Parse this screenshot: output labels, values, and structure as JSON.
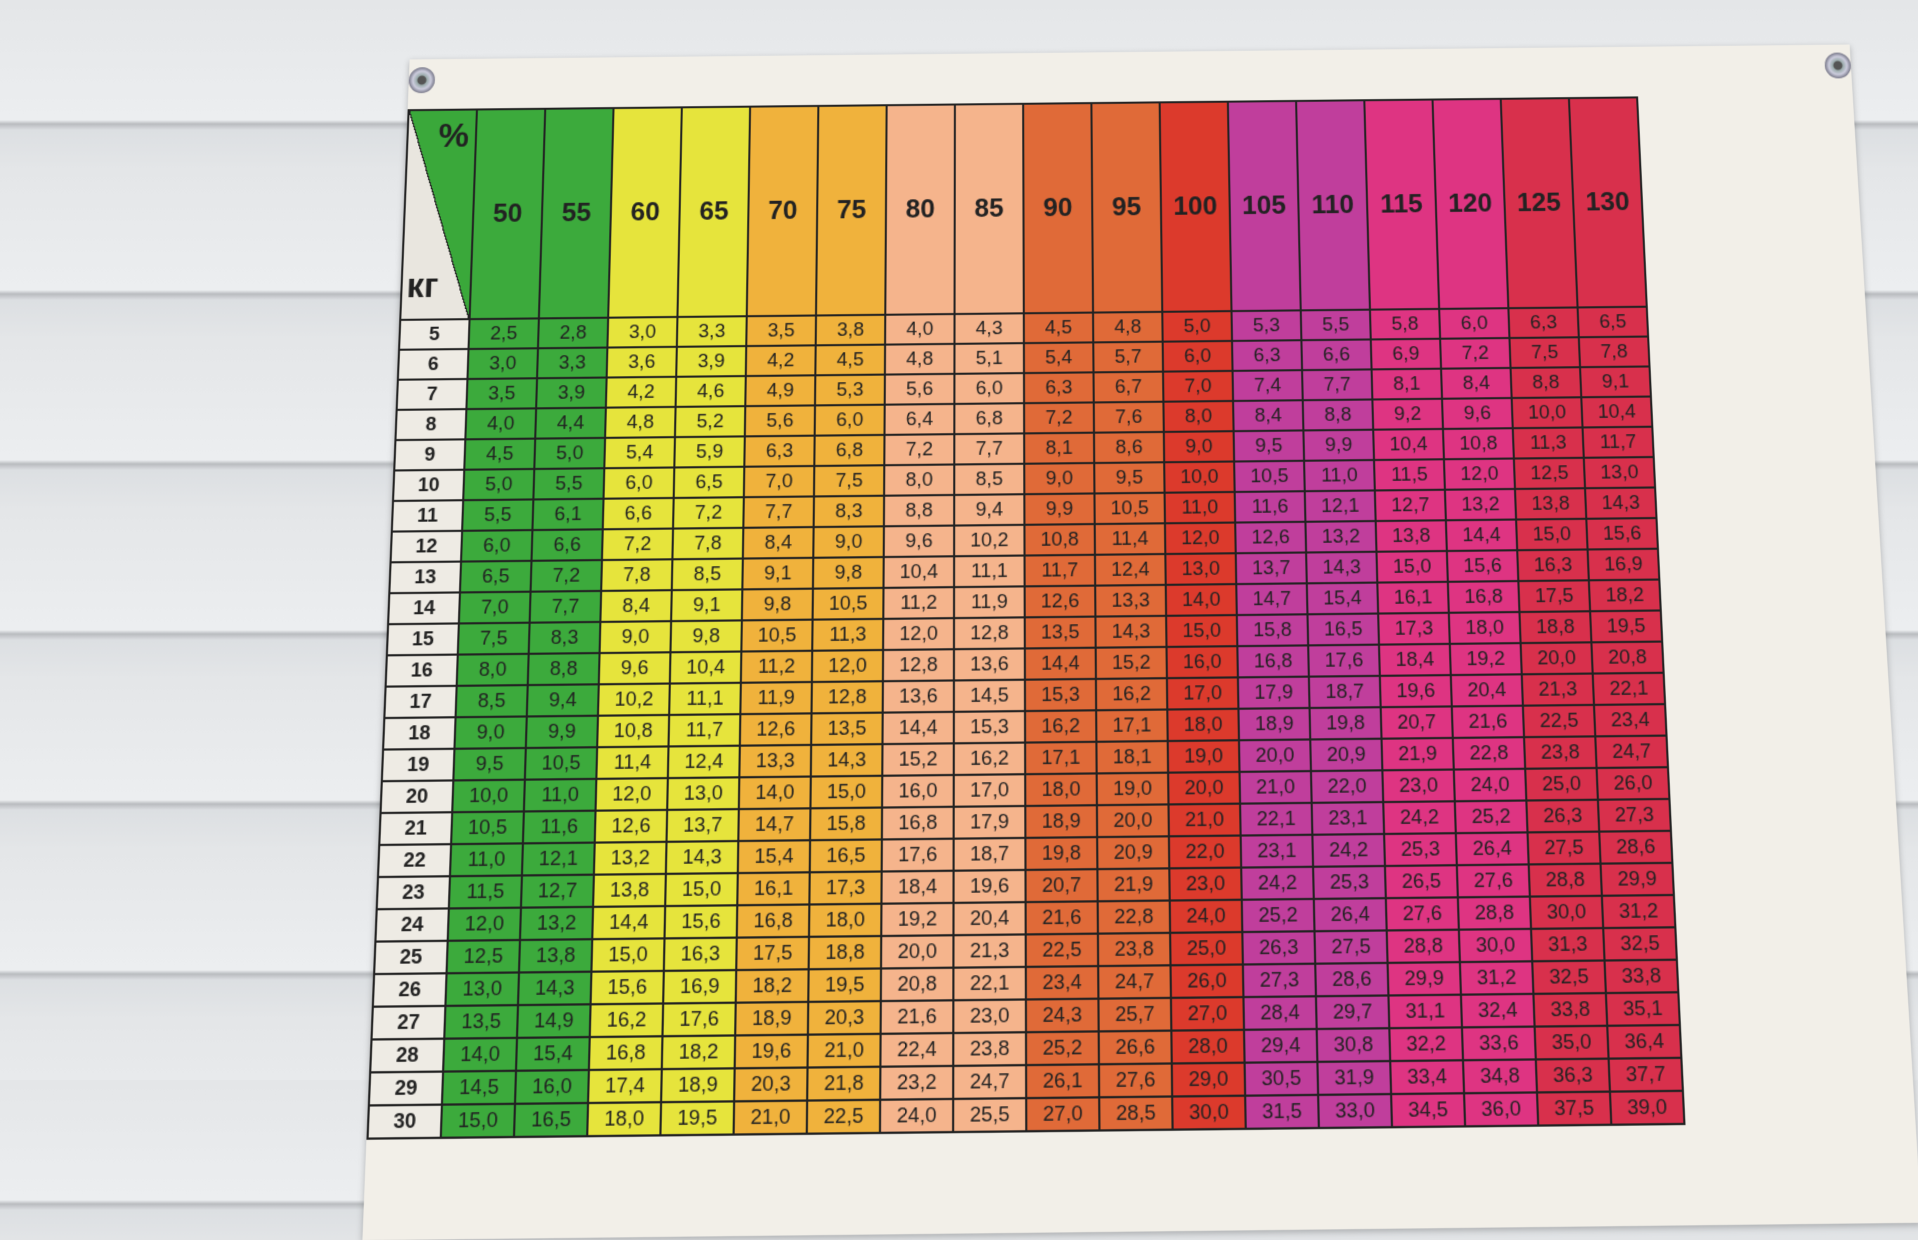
{
  "header": {
    "percent_symbol": "%",
    "unit_label": "кг"
  },
  "columns": [
    "50",
    "55",
    "60",
    "65",
    "70",
    "75",
    "80",
    "85",
    "90",
    "95",
    "100",
    "105",
    "110",
    "115",
    "120",
    "125",
    "130"
  ],
  "column_colors": [
    "#3caa3c",
    "#3caa3c",
    "#e6e43c",
    "#e6e43c",
    "#f0b23c",
    "#f0b23c",
    "#f5b48c",
    "#f5b48c",
    "#e06a38",
    "#e06a38",
    "#dc3a2c",
    "#c03e9c",
    "#c03e9c",
    "#de3482",
    "#de3482",
    "#d8304c",
    "#d8304c"
  ],
  "rows": [
    {
      "kg": "5",
      "values": [
        "2,5",
        "2,8",
        "3,0",
        "3,3",
        "3,5",
        "3,8",
        "4,0",
        "4,3",
        "4,5",
        "4,8",
        "5,0",
        "5,3",
        "5,5",
        "5,8",
        "6,0",
        "6,3",
        "6,5"
      ]
    },
    {
      "kg": "6",
      "values": [
        "3,0",
        "3,3",
        "3,6",
        "3,9",
        "4,2",
        "4,5",
        "4,8",
        "5,1",
        "5,4",
        "5,7",
        "6,0",
        "6,3",
        "6,6",
        "6,9",
        "7,2",
        "7,5",
        "7,8"
      ]
    },
    {
      "kg": "7",
      "values": [
        "3,5",
        "3,9",
        "4,2",
        "4,6",
        "4,9",
        "5,3",
        "5,6",
        "6,0",
        "6,3",
        "6,7",
        "7,0",
        "7,4",
        "7,7",
        "8,1",
        "8,4",
        "8,8",
        "9,1"
      ]
    },
    {
      "kg": "8",
      "values": [
        "4,0",
        "4,4",
        "4,8",
        "5,2",
        "5,6",
        "6,0",
        "6,4",
        "6,8",
        "7,2",
        "7,6",
        "8,0",
        "8,4",
        "8,8",
        "9,2",
        "9,6",
        "10,0",
        "10,4"
      ]
    },
    {
      "kg": "9",
      "values": [
        "4,5",
        "5,0",
        "5,4",
        "5,9",
        "6,3",
        "6,8",
        "7,2",
        "7,7",
        "8,1",
        "8,6",
        "9,0",
        "9,5",
        "9,9",
        "10,4",
        "10,8",
        "11,3",
        "11,7"
      ]
    },
    {
      "kg": "10",
      "values": [
        "5,0",
        "5,5",
        "6,0",
        "6,5",
        "7,0",
        "7,5",
        "8,0",
        "8,5",
        "9,0",
        "9,5",
        "10,0",
        "10,5",
        "11,0",
        "11,5",
        "12,0",
        "12,5",
        "13,0"
      ]
    },
    {
      "kg": "11",
      "values": [
        "5,5",
        "6,1",
        "6,6",
        "7,2",
        "7,7",
        "8,3",
        "8,8",
        "9,4",
        "9,9",
        "10,5",
        "11,0",
        "11,6",
        "12,1",
        "12,7",
        "13,2",
        "13,8",
        "14,3"
      ]
    },
    {
      "kg": "12",
      "values": [
        "6,0",
        "6,6",
        "7,2",
        "7,8",
        "8,4",
        "9,0",
        "9,6",
        "10,2",
        "10,8",
        "11,4",
        "12,0",
        "12,6",
        "13,2",
        "13,8",
        "14,4",
        "15,0",
        "15,6"
      ]
    },
    {
      "kg": "13",
      "values": [
        "6,5",
        "7,2",
        "7,8",
        "8,5",
        "9,1",
        "9,8",
        "10,4",
        "11,1",
        "11,7",
        "12,4",
        "13,0",
        "13,7",
        "14,3",
        "15,0",
        "15,6",
        "16,3",
        "16,9"
      ]
    },
    {
      "kg": "14",
      "values": [
        "7,0",
        "7,7",
        "8,4",
        "9,1",
        "9,8",
        "10,5",
        "11,2",
        "11,9",
        "12,6",
        "13,3",
        "14,0",
        "14,7",
        "15,4",
        "16,1",
        "16,8",
        "17,5",
        "18,2"
      ]
    },
    {
      "kg": "15",
      "values": [
        "7,5",
        "8,3",
        "9,0",
        "9,8",
        "10,5",
        "11,3",
        "12,0",
        "12,8",
        "13,5",
        "14,3",
        "15,0",
        "15,8",
        "16,5",
        "17,3",
        "18,0",
        "18,8",
        "19,5"
      ]
    },
    {
      "kg": "16",
      "values": [
        "8,0",
        "8,8",
        "9,6",
        "10,4",
        "11,2",
        "12,0",
        "12,8",
        "13,6",
        "14,4",
        "15,2",
        "16,0",
        "16,8",
        "17,6",
        "18,4",
        "19,2",
        "20,0",
        "20,8"
      ]
    },
    {
      "kg": "17",
      "values": [
        "8,5",
        "9,4",
        "10,2",
        "11,1",
        "11,9",
        "12,8",
        "13,6",
        "14,5",
        "15,3",
        "16,2",
        "17,0",
        "17,9",
        "18,7",
        "19,6",
        "20,4",
        "21,3",
        "22,1"
      ]
    },
    {
      "kg": "18",
      "values": [
        "9,0",
        "9,9",
        "10,8",
        "11,7",
        "12,6",
        "13,5",
        "14,4",
        "15,3",
        "16,2",
        "17,1",
        "18,0",
        "18,9",
        "19,8",
        "20,7",
        "21,6",
        "22,5",
        "23,4"
      ]
    },
    {
      "kg": "19",
      "values": [
        "9,5",
        "10,5",
        "11,4",
        "12,4",
        "13,3",
        "14,3",
        "15,2",
        "16,2",
        "17,1",
        "18,1",
        "19,0",
        "20,0",
        "20,9",
        "21,9",
        "22,8",
        "23,8",
        "24,7"
      ]
    },
    {
      "kg": "20",
      "values": [
        "10,0",
        "11,0",
        "12,0",
        "13,0",
        "14,0",
        "15,0",
        "16,0",
        "17,0",
        "18,0",
        "19,0",
        "20,0",
        "21,0",
        "22,0",
        "23,0",
        "24,0",
        "25,0",
        "26,0"
      ]
    },
    {
      "kg": "21",
      "values": [
        "10,5",
        "11,6",
        "12,6",
        "13,7",
        "14,7",
        "15,8",
        "16,8",
        "17,9",
        "18,9",
        "20,0",
        "21,0",
        "22,1",
        "23,1",
        "24,2",
        "25,2",
        "26,3",
        "27,3"
      ]
    },
    {
      "kg": "22",
      "values": [
        "11,0",
        "12,1",
        "13,2",
        "14,3",
        "15,4",
        "16,5",
        "17,6",
        "18,7",
        "19,8",
        "20,9",
        "22,0",
        "23,1",
        "24,2",
        "25,3",
        "26,4",
        "27,5",
        "28,6"
      ]
    },
    {
      "kg": "23",
      "values": [
        "11,5",
        "12,7",
        "13,8",
        "15,0",
        "16,1",
        "17,3",
        "18,4",
        "19,6",
        "20,7",
        "21,9",
        "23,0",
        "24,2",
        "25,3",
        "26,5",
        "27,6",
        "28,8",
        "29,9"
      ]
    },
    {
      "kg": "24",
      "values": [
        "12,0",
        "13,2",
        "14,4",
        "15,6",
        "16,8",
        "18,0",
        "19,2",
        "20,4",
        "21,6",
        "22,8",
        "24,0",
        "25,2",
        "26,4",
        "27,6",
        "28,8",
        "30,0",
        "31,2"
      ]
    },
    {
      "kg": "25",
      "values": [
        "12,5",
        "13,8",
        "15,0",
        "16,3",
        "17,5",
        "18,8",
        "20,0",
        "21,3",
        "22,5",
        "23,8",
        "25,0",
        "26,3",
        "27,5",
        "28,8",
        "30,0",
        "31,3",
        "32,5"
      ]
    },
    {
      "kg": "26",
      "values": [
        "13,0",
        "14,3",
        "15,6",
        "16,9",
        "18,2",
        "19,5",
        "20,8",
        "22,1",
        "23,4",
        "24,7",
        "26,0",
        "27,3",
        "28,6",
        "29,9",
        "31,2",
        "32,5",
        "33,8"
      ]
    },
    {
      "kg": "27",
      "values": [
        "13,5",
        "14,9",
        "16,2",
        "17,6",
        "18,9",
        "20,3",
        "21,6",
        "23,0",
        "24,3",
        "25,7",
        "27,0",
        "28,4",
        "29,7",
        "31,1",
        "32,4",
        "33,8",
        "35,1"
      ]
    },
    {
      "kg": "28",
      "values": [
        "14,0",
        "15,4",
        "16,8",
        "18,2",
        "19,6",
        "21,0",
        "22,4",
        "23,8",
        "25,2",
        "26,6",
        "28,0",
        "29,4",
        "30,8",
        "32,2",
        "33,6",
        "35,0",
        "36,4"
      ]
    },
    {
      "kg": "29",
      "values": [
        "14,5",
        "16,0",
        "17,4",
        "18,9",
        "20,3",
        "21,8",
        "23,2",
        "24,7",
        "26,1",
        "27,6",
        "29,0",
        "30,5",
        "31,9",
        "33,4",
        "34,8",
        "36,3",
        "37,7"
      ]
    },
    {
      "kg": "30",
      "values": [
        "15,0",
        "16,5",
        "18,0",
        "19,5",
        "21,0",
        "22,5",
        "24,0",
        "25,5",
        "27,0",
        "28,5",
        "30,0",
        "31,5",
        "33,0",
        "34,5",
        "36,0",
        "37,5",
        "39,0"
      ]
    }
  ]
}
